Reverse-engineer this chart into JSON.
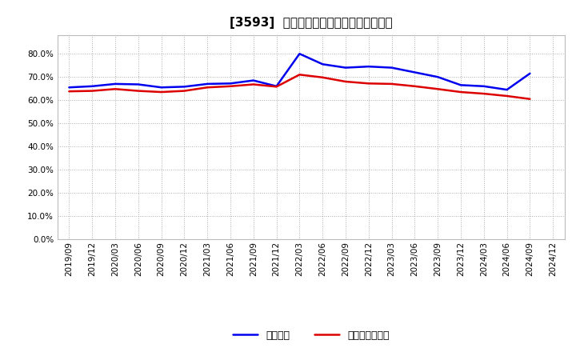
{
  "title": "[3593]  固定比率、固定長期適合率の推移",
  "line1_label": "固定比率",
  "line1_color": "#0000EE",
  "line2_label": "固定長期適合率",
  "line2_color": "#DD0000",
  "ylim": [
    0.0,
    0.88
  ],
  "yticks": [
    0.0,
    0.1,
    0.2,
    0.3,
    0.4,
    0.5,
    0.6,
    0.7,
    0.8
  ],
  "background_color": "#FFFFFF",
  "grid_color": "#999999",
  "dates": [
    "2019/09",
    "2019/12",
    "2020/03",
    "2020/06",
    "2020/09",
    "2020/12",
    "2021/03",
    "2021/06",
    "2021/09",
    "2021/12",
    "2022/03",
    "2022/06",
    "2022/09",
    "2022/12",
    "2023/03",
    "2023/06",
    "2023/09",
    "2023/12",
    "2024/03",
    "2024/06",
    "2024/09",
    "2024/12"
  ],
  "line1_values": [
    0.655,
    0.66,
    0.67,
    0.668,
    0.655,
    0.658,
    0.67,
    0.672,
    0.685,
    0.66,
    0.8,
    0.755,
    0.74,
    0.745,
    0.74,
    0.72,
    0.7,
    0.665,
    0.66,
    0.645,
    0.715,
    null
  ],
  "line2_values": [
    0.638,
    0.64,
    0.648,
    0.64,
    0.635,
    0.64,
    0.655,
    0.66,
    0.668,
    0.658,
    0.71,
    0.698,
    0.68,
    0.672,
    0.67,
    0.66,
    0.648,
    0.635,
    0.628,
    0.618,
    0.605,
    null
  ],
  "figsize": [
    7.2,
    4.4
  ],
  "dpi": 100,
  "title_fontsize": 11,
  "tick_fontsize": 7.5,
  "legend_fontsize": 9
}
